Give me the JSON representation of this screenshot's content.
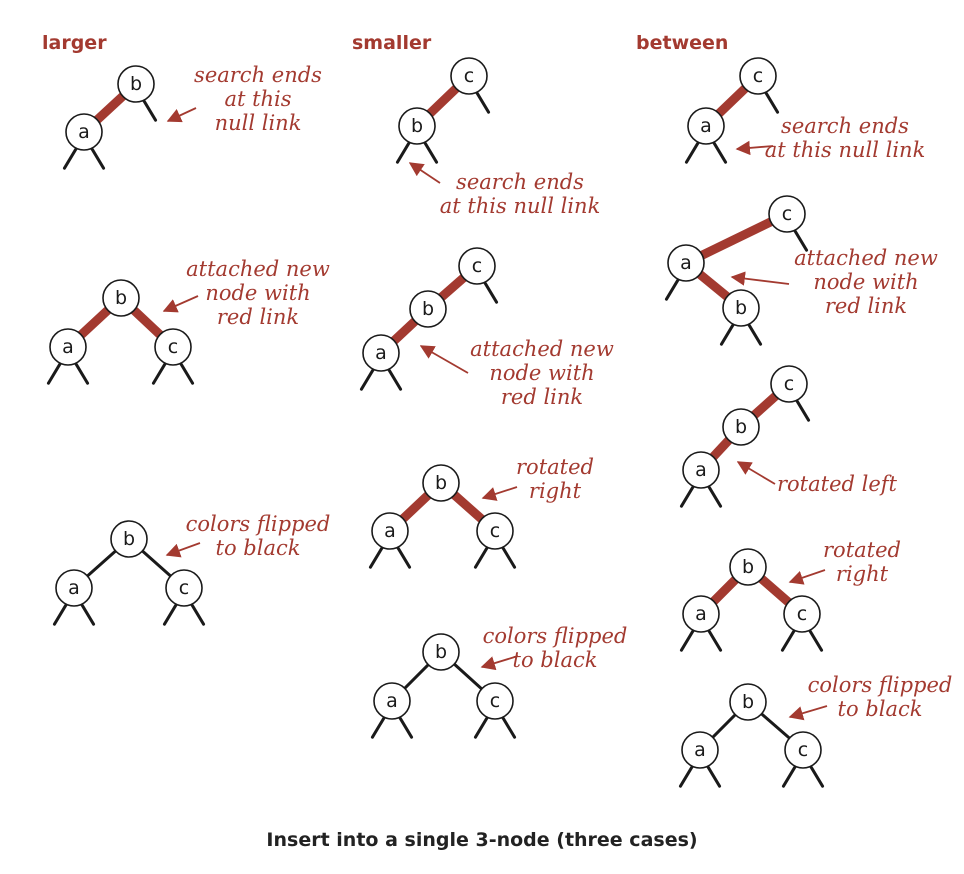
{
  "title": "Insert into a single 3-node (three cases)",
  "columns": [
    {
      "heading": "larger",
      "steps": [
        {
          "nodes": [
            "b",
            "a"
          ],
          "note": [
            "search ends",
            "at this",
            "null link"
          ]
        },
        {
          "nodes": [
            "b",
            "a",
            "c"
          ],
          "note": [
            "attached new",
            "node with",
            "red link"
          ]
        },
        {
          "nodes": [
            "b",
            "a",
            "c"
          ],
          "note": [
            "colors flipped",
            "to black"
          ]
        }
      ]
    },
    {
      "heading": "smaller",
      "steps": [
        {
          "nodes": [
            "c",
            "b"
          ],
          "note": [
            "search ends",
            "at this null link"
          ]
        },
        {
          "nodes": [
            "c",
            "b",
            "a"
          ],
          "note": [
            "attached new",
            "node with",
            "red link"
          ]
        },
        {
          "nodes": [
            "b",
            "a",
            "c"
          ],
          "note": [
            "rotated",
            "right"
          ]
        },
        {
          "nodes": [
            "b",
            "a",
            "c"
          ],
          "note": [
            "colors flipped",
            "to black"
          ]
        }
      ]
    },
    {
      "heading": "between",
      "steps": [
        {
          "nodes": [
            "c",
            "a"
          ],
          "note": [
            "search ends",
            "at this null link"
          ]
        },
        {
          "nodes": [
            "c",
            "a",
            "b"
          ],
          "note": [
            "attached new",
            "node with",
            "red link"
          ]
        },
        {
          "nodes": [
            "c",
            "b",
            "a"
          ],
          "note": [
            "rotated left"
          ]
        },
        {
          "nodes": [
            "b",
            "a",
            "c"
          ],
          "note": [
            "rotated",
            "right"
          ]
        },
        {
          "nodes": [
            "b",
            "a",
            "c"
          ],
          "note": [
            "colors flipped",
            "to black"
          ]
        }
      ]
    }
  ],
  "colors": {
    "red_link": "#a33a30",
    "black_link": "#1a1a1a",
    "text_accent": "#a33a30"
  }
}
